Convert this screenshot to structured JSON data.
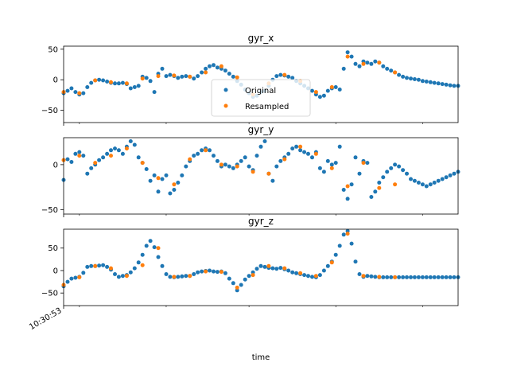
{
  "xlabel": "time",
  "x_tick_label": "10:30:53",
  "legend": {
    "placement": "center",
    "entries": [
      "Original",
      "Resampled"
    ]
  },
  "colors": {
    "original": "#1f77b4",
    "resampled": "#ff7f0e",
    "frame": "#000000"
  },
  "chart_data": [
    {
      "type": "scatter",
      "title": "gyr_x",
      "xlabel": "",
      "ylabel": "",
      "xlim": [
        0,
        100
      ],
      "ylim": [
        -70,
        55
      ],
      "yticks": [
        50,
        0,
        -50
      ],
      "ytick_labels": [
        "50",
        "0",
        "−50"
      ],
      "grid": false,
      "series": [
        {
          "name": "Original",
          "x": [
            0,
            1,
            2,
            3,
            4,
            5,
            6,
            7,
            8,
            9,
            10,
            11,
            12,
            13,
            14,
            15,
            16,
            17,
            18,
            19,
            20,
            21,
            22,
            23,
            24,
            25,
            26,
            27,
            28,
            29,
            30,
            31,
            32,
            33,
            34,
            35,
            36,
            37,
            38,
            39,
            40,
            41,
            42,
            43,
            44,
            45,
            46,
            47,
            48,
            49,
            50,
            51,
            52,
            53,
            54,
            55,
            56,
            57,
            58,
            59,
            60,
            61,
            62,
            63,
            64,
            65,
            66,
            67,
            68,
            69,
            70,
            71,
            72,
            73,
            74,
            75,
            76,
            77,
            78,
            79,
            80,
            81,
            82,
            83,
            84,
            85,
            86,
            87,
            88,
            89,
            90,
            91,
            92,
            93,
            94,
            95,
            96,
            97,
            98,
            99,
            100
          ],
          "y": [
            -22,
            -18,
            -14,
            -20,
            -24,
            -22,
            -12,
            -5,
            -1,
            0,
            -1,
            -3,
            -5,
            -6,
            -6,
            -5,
            -7,
            -14,
            -12,
            -10,
            5,
            3,
            -2,
            -20,
            10,
            18,
            6,
            8,
            6,
            3,
            5,
            6,
            5,
            2,
            6,
            12,
            18,
            22,
            24,
            20,
            18,
            15,
            10,
            5,
            -2,
            -8,
            -16,
            -22,
            -28,
            -26,
            -20,
            -18,
            -10,
            0,
            6,
            8,
            7,
            5,
            3,
            -2,
            -6,
            -10,
            -14,
            -18,
            -24,
            -28,
            -26,
            -18,
            -14,
            -12,
            -16,
            18,
            45,
            38,
            26,
            22,
            30,
            28,
            26,
            30,
            28,
            22,
            18,
            15,
            12,
            8,
            5,
            3,
            2,
            1,
            0,
            -2,
            -3,
            -4,
            -5,
            -6,
            -7,
            -8,
            -9,
            -10,
            -10
          ]
        },
        {
          "name": "Resampled",
          "x": [
            0,
            4,
            8,
            12,
            16,
            20,
            24,
            28,
            32,
            36,
            40,
            44,
            48,
            52,
            56,
            60,
            64,
            68,
            72,
            76,
            80,
            84
          ],
          "y": [
            -20,
            -22,
            -1,
            -4,
            -6,
            2,
            6,
            7,
            5,
            12,
            22,
            4,
            -24,
            -6,
            8,
            -2,
            -20,
            -12,
            38,
            26,
            28,
            12
          ]
        }
      ]
    },
    {
      "type": "scatter",
      "title": "gyr_y",
      "xlabel": "",
      "ylabel": "",
      "xlim": [
        0,
        100
      ],
      "ylim": [
        -55,
        30
      ],
      "yticks": [
        0,
        -50
      ],
      "ytick_labels": [
        "0",
        "−50"
      ],
      "grid": false,
      "series": [
        {
          "name": "Original",
          "x": [
            0,
            1,
            2,
            3,
            4,
            5,
            6,
            7,
            8,
            9,
            10,
            11,
            12,
            13,
            14,
            15,
            16,
            17,
            18,
            19,
            20,
            21,
            22,
            23,
            24,
            25,
            26,
            27,
            28,
            29,
            30,
            31,
            32,
            33,
            34,
            35,
            36,
            37,
            38,
            39,
            40,
            41,
            42,
            43,
            44,
            45,
            46,
            47,
            48,
            49,
            50,
            51,
            52,
            53,
            54,
            55,
            56,
            57,
            58,
            59,
            60,
            61,
            62,
            63,
            64,
            65,
            66,
            67,
            68,
            69,
            70,
            71,
            72,
            73,
            74,
            75,
            76,
            77,
            78,
            79,
            80,
            81,
            82,
            83,
            84,
            85,
            86,
            87,
            88,
            89,
            90,
            91,
            92,
            93,
            94,
            95,
            96,
            97,
            98,
            99,
            100
          ],
          "y": [
            -17,
            6,
            3,
            12,
            14,
            10,
            -10,
            -4,
            0,
            5,
            8,
            12,
            16,
            18,
            16,
            12,
            20,
            26,
            22,
            8,
            2,
            -5,
            -18,
            -12,
            -30,
            -16,
            -12,
            -32,
            -28,
            -20,
            -12,
            -2,
            4,
            10,
            12,
            16,
            18,
            16,
            10,
            4,
            -2,
            0,
            -2,
            -4,
            0,
            4,
            8,
            -2,
            -6,
            10,
            20,
            26,
            -10,
            -18,
            -2,
            4,
            8,
            12,
            18,
            20,
            16,
            14,
            12,
            8,
            14,
            -4,
            -8,
            4,
            0,
            2,
            20,
            -28,
            -38,
            -22,
            8,
            -10,
            4,
            2,
            -36,
            -30,
            -20,
            -14,
            -8,
            -4,
            0,
            -2,
            -6,
            -10,
            -16,
            -18,
            -20,
            -22,
            -24,
            -22,
            -20,
            -18,
            -16,
            -14,
            -12,
            -10,
            -8
          ]
        },
        {
          "name": "Resampled",
          "x": [
            0,
            4,
            8,
            12,
            16,
            20,
            24,
            28,
            32,
            36,
            40,
            44,
            48,
            52,
            56,
            60,
            64,
            68,
            72,
            76,
            80,
            84
          ],
          "y": [
            5,
            10,
            2,
            10,
            18,
            2,
            -15,
            -22,
            6,
            16,
            0,
            -2,
            -8,
            -10,
            6,
            20,
            12,
            -4,
            -24,
            2,
            -26,
            -22
          ]
        }
      ]
    },
    {
      "type": "scatter",
      "title": "gyr_z",
      "xlabel": "",
      "ylabel": "",
      "xlim": [
        0,
        100
      ],
      "ylim": [
        -78,
        92
      ],
      "yticks": [
        50,
        0,
        -50
      ],
      "ytick_labels": [
        "50",
        "0",
        "−50"
      ],
      "grid": false,
      "series": [
        {
          "name": "Original",
          "x": [
            0,
            1,
            2,
            3,
            4,
            5,
            6,
            7,
            8,
            9,
            10,
            11,
            12,
            13,
            14,
            15,
            16,
            17,
            18,
            19,
            20,
            21,
            22,
            23,
            24,
            25,
            26,
            27,
            28,
            29,
            30,
            31,
            32,
            33,
            34,
            35,
            36,
            37,
            38,
            39,
            40,
            41,
            42,
            43,
            44,
            45,
            46,
            47,
            48,
            49,
            50,
            51,
            52,
            53,
            54,
            55,
            56,
            57,
            58,
            59,
            60,
            61,
            62,
            63,
            64,
            65,
            66,
            67,
            68,
            69,
            70,
            71,
            72,
            73,
            74,
            75,
            76,
            77,
            78,
            79,
            80,
            81,
            82,
            83,
            84,
            85,
            86,
            87,
            88,
            89,
            90,
            91,
            92,
            93,
            94,
            95,
            96,
            97,
            98,
            99,
            100
          ],
          "y": [
            -35,
            -25,
            -18,
            -16,
            -14,
            -5,
            8,
            10,
            10,
            11,
            12,
            8,
            2,
            -8,
            -14,
            -12,
            -10,
            -4,
            5,
            18,
            35,
            55,
            66,
            52,
            30,
            10,
            -8,
            -14,
            -15,
            -14,
            -13,
            -12,
            -12,
            -8,
            -4,
            -2,
            -1,
            0,
            -2,
            -3,
            -2,
            -6,
            -18,
            -28,
            -44,
            -32,
            -20,
            -12,
            -4,
            4,
            10,
            8,
            6,
            5,
            4,
            6,
            3,
            0,
            -4,
            -6,
            -8,
            -10,
            -12,
            -14,
            -15,
            -10,
            0,
            10,
            20,
            35,
            55,
            80,
            88,
            60,
            20,
            -8,
            -14,
            -12,
            -13,
            -14,
            -15,
            -15,
            -15,
            -15,
            -15,
            -15,
            -15,
            -15,
            -15,
            -15,
            -15,
            -15,
            -15,
            -15,
            -15,
            -15,
            -15,
            -15,
            -15,
            -15,
            -15
          ]
        },
        {
          "name": "Resampled",
          "x": [
            0,
            4,
            8,
            12,
            16,
            20,
            24,
            28,
            32,
            36,
            40,
            44,
            48,
            52,
            56,
            60,
            64,
            68,
            72,
            76,
            80,
            84
          ],
          "y": [
            -32,
            -15,
            10,
            5,
            -12,
            12,
            50,
            -14,
            -12,
            -2,
            -3,
            -38,
            -10,
            10,
            5,
            -6,
            -12,
            18,
            82,
            -12,
            -14,
            -15
          ]
        }
      ]
    }
  ]
}
